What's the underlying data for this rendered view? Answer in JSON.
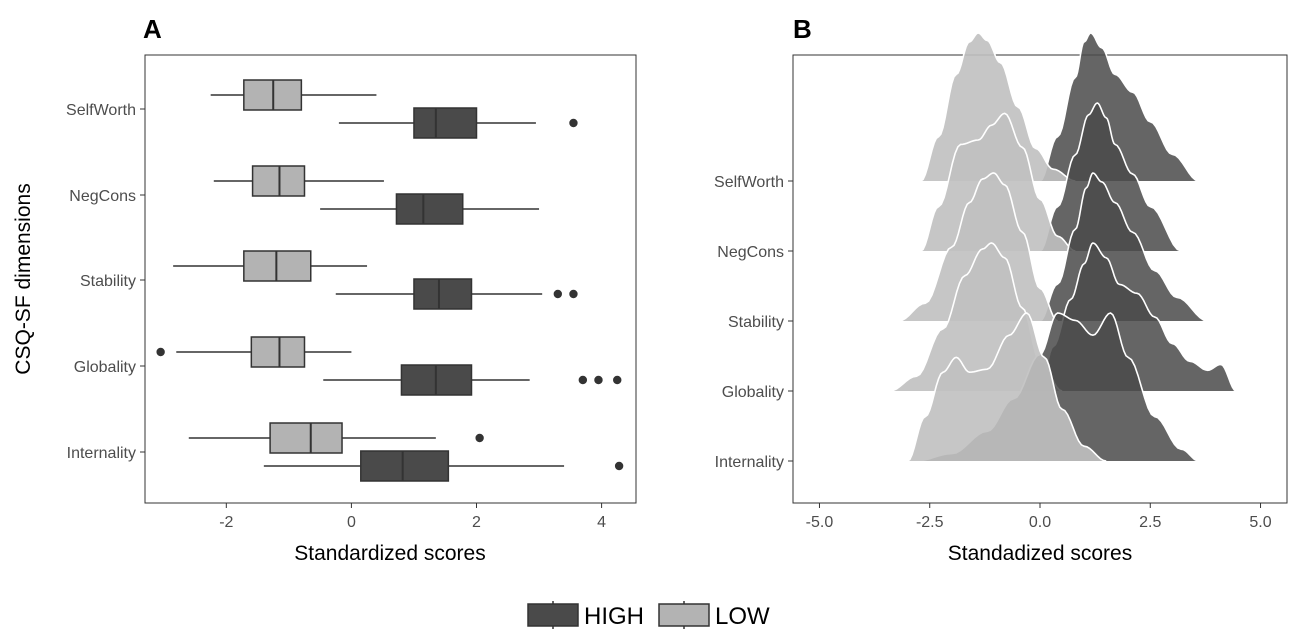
{
  "legend": {
    "entries": [
      {
        "label": "HIGH",
        "color": "#4a4a4a"
      },
      {
        "label": "LOW",
        "color": "#b3b3b3"
      }
    ]
  },
  "chart_data": [
    {
      "panel": "A",
      "type": "box",
      "xlabel": "Standardized scores",
      "ylabel": "CSQ-SF dimensions",
      "xlim": [
        -3.3,
        4.55
      ],
      "xticks": [
        -2,
        0,
        2,
        4
      ],
      "categories": [
        "SelfWorth",
        "NegCons",
        "Stability",
        "Globality",
        "Internality"
      ],
      "grid": false,
      "series": [
        {
          "name": "HIGH",
          "color": "#4a4a4a",
          "boxes": [
            {
              "category": "SelfWorth",
              "whisker_low": -0.2,
              "q1": 1.0,
              "median": 1.35,
              "q3": 2.0,
              "whisker_high": 2.95,
              "outliers": [
                3.55
              ]
            },
            {
              "category": "NegCons",
              "whisker_low": -0.5,
              "q1": 0.72,
              "median": 1.15,
              "q3": 1.78,
              "whisker_high": 3.0,
              "outliers": []
            },
            {
              "category": "Stability",
              "whisker_low": -0.25,
              "q1": 1.0,
              "median": 1.4,
              "q3": 1.92,
              "whisker_high": 3.05,
              "outliers": [
                3.3,
                3.55
              ]
            },
            {
              "category": "Globality",
              "whisker_low": -0.45,
              "q1": 0.8,
              "median": 1.35,
              "q3": 1.92,
              "whisker_high": 2.85,
              "outliers": [
                3.7,
                3.95,
                4.25
              ]
            },
            {
              "category": "Internality",
              "whisker_low": -1.4,
              "q1": 0.15,
              "median": 0.82,
              "q3": 1.55,
              "whisker_high": 3.4,
              "outliers": [
                4.28
              ]
            }
          ]
        },
        {
          "name": "LOW",
          "color": "#b3b3b3",
          "boxes": [
            {
              "category": "SelfWorth",
              "whisker_low": -2.25,
              "q1": -1.72,
              "median": -1.25,
              "q3": -0.8,
              "whisker_high": 0.4,
              "outliers": []
            },
            {
              "category": "NegCons",
              "whisker_low": -2.2,
              "q1": -1.58,
              "median": -1.15,
              "q3": -0.75,
              "whisker_high": 0.52,
              "outliers": []
            },
            {
              "category": "Stability",
              "whisker_low": -2.85,
              "q1": -1.72,
              "median": -1.2,
              "q3": -0.65,
              "whisker_high": 0.25,
              "outliers": []
            },
            {
              "category": "Globality",
              "whisker_low": -2.8,
              "q1": -1.6,
              "median": -1.15,
              "q3": -0.75,
              "whisker_high": 0.0,
              "outliers": [
                -3.05
              ]
            },
            {
              "category": "Internality",
              "whisker_low": -2.6,
              "q1": -1.3,
              "median": -0.65,
              "q3": -0.15,
              "whisker_high": 1.35,
              "outliers": [
                2.05
              ]
            }
          ]
        }
      ]
    },
    {
      "panel": "B",
      "type": "ridgeline",
      "xlabel": "Standadized scores",
      "xlim": [
        -5.6,
        5.6
      ],
      "xticks": [
        -5.0,
        -2.5,
        0.0,
        2.5,
        5.0
      ],
      "xtick_labels": [
        "-5.0",
        "-2.5",
        "0.0",
        "2.5",
        "5.0"
      ],
      "categories": [
        "Internality",
        "Globality",
        "Stability",
        "NegCons",
        "SelfWorth"
      ],
      "grid": false,
      "series": [
        {
          "name": "HIGH",
          "color": "#4a4a4a",
          "ridges": [
            {
              "category": "Internality",
              "x": [
                -2.8,
                -2.0,
                -1.2,
                -0.6,
                0.0,
                0.4,
                0.8,
                1.2,
                1.6,
                2.0,
                2.6,
                3.2,
                3.6
              ],
              "density": [
                0,
                0.05,
                0.2,
                0.42,
                0.72,
                1.0,
                0.95,
                0.85,
                1.0,
                0.7,
                0.3,
                0.08,
                0
              ]
            },
            {
              "category": "Globality",
              "x": [
                0.0,
                0.3,
                0.7,
                1.0,
                1.2,
                1.5,
                1.8,
                2.2,
                2.6,
                3.0,
                3.4,
                3.8,
                4.1,
                4.45
              ],
              "density": [
                0,
                0.3,
                0.62,
                0.86,
                1.0,
                0.9,
                0.72,
                0.66,
                0.5,
                0.32,
                0.2,
                0.14,
                0.18,
                0
              ]
            },
            {
              "category": "Stability",
              "x": [
                0.0,
                0.4,
                0.8,
                1.05,
                1.2,
                1.4,
                1.7,
                2.1,
                2.6,
                3.1,
                3.8
              ],
              "density": [
                0,
                0.25,
                0.62,
                0.9,
                1.0,
                0.94,
                0.8,
                0.6,
                0.34,
                0.16,
                0
              ]
            },
            {
              "category": "NegCons",
              "x": [
                0.0,
                0.4,
                0.8,
                1.1,
                1.3,
                1.5,
                1.7,
                2.1,
                2.5,
                3.2
              ],
              "density": [
                0,
                0.3,
                0.65,
                0.92,
                1.0,
                0.9,
                0.72,
                0.52,
                0.3,
                0
              ]
            },
            {
              "category": "SelfWorth",
              "x": [
                0.0,
                0.4,
                0.8,
                1.0,
                1.15,
                1.4,
                1.7,
                2.1,
                2.5,
                3.0,
                3.6
              ],
              "density": [
                0,
                0.3,
                0.7,
                0.94,
                1.0,
                0.9,
                0.72,
                0.6,
                0.4,
                0.18,
                0
              ]
            }
          ]
        },
        {
          "name": "LOW",
          "color": "#c0c0c0",
          "ridges": [
            {
              "category": "Internality",
              "x": [
                -3.0,
                -2.6,
                -2.2,
                -1.9,
                -1.6,
                -1.2,
                -0.7,
                -0.3,
                0.1,
                0.5,
                1.0,
                1.5
              ],
              "density": [
                0,
                0.3,
                0.6,
                0.7,
                0.6,
                0.62,
                0.85,
                1.0,
                0.7,
                0.35,
                0.1,
                0
              ]
            },
            {
              "category": "Globality",
              "x": [
                -3.4,
                -2.8,
                -2.2,
                -1.7,
                -1.3,
                -1.1,
                -0.8,
                -0.4,
                0.0,
                0.5
              ],
              "density": [
                0,
                0.1,
                0.42,
                0.78,
                0.96,
                1.0,
                0.9,
                0.56,
                0.2,
                0
              ]
            },
            {
              "category": "Stability",
              "x": [
                -3.2,
                -2.6,
                -2.0,
                -1.6,
                -1.3,
                -1.05,
                -0.8,
                -0.4,
                0.0,
                0.4
              ],
              "density": [
                0,
                0.12,
                0.5,
                0.8,
                0.96,
                1.0,
                0.92,
                0.6,
                0.22,
                0
              ]
            },
            {
              "category": "NegCons",
              "x": [
                -2.7,
                -2.3,
                -1.8,
                -1.4,
                -1.1,
                -0.8,
                -0.4,
                0.0,
                0.4,
                0.8
              ],
              "density": [
                0,
                0.3,
                0.72,
                0.75,
                0.85,
                0.93,
                0.7,
                0.35,
                0.1,
                0
              ]
            },
            {
              "category": "SelfWorth",
              "x": [
                -2.7,
                -2.3,
                -1.9,
                -1.6,
                -1.4,
                -1.2,
                -0.9,
                -0.5,
                -0.1,
                0.3,
                0.8
              ],
              "density": [
                0,
                0.3,
                0.72,
                0.94,
                1.0,
                0.95,
                0.8,
                0.5,
                0.22,
                0.08,
                0
              ]
            }
          ]
        }
      ]
    }
  ]
}
